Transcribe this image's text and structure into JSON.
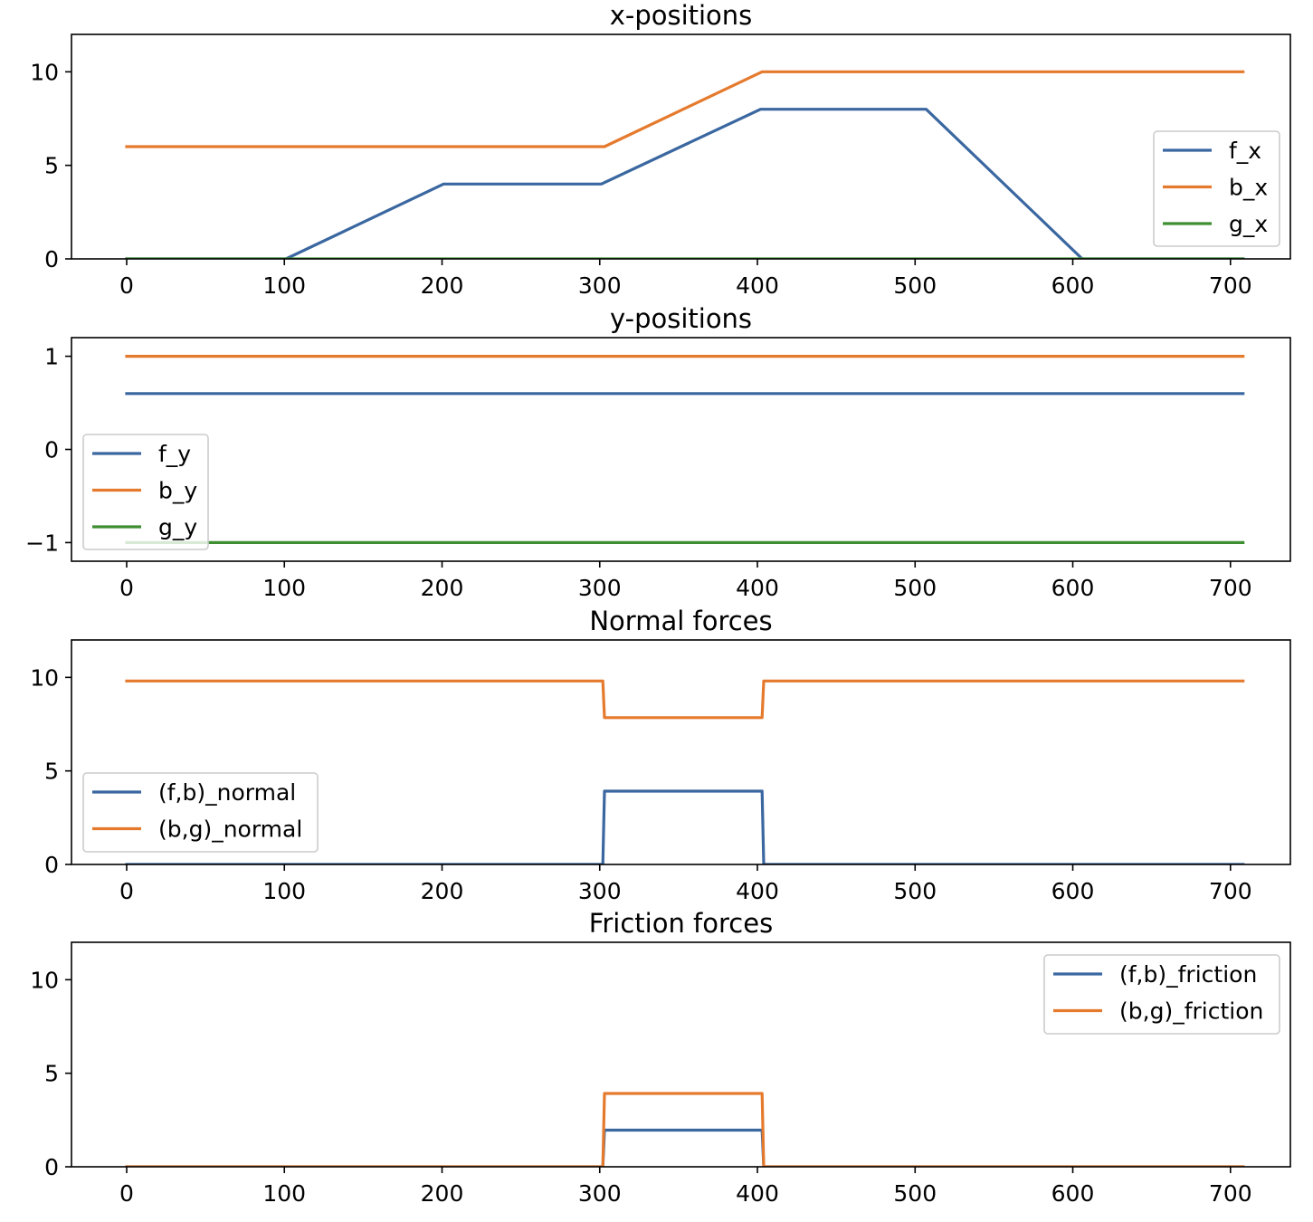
{
  "chart_data": [
    {
      "type": "line",
      "title": "x-positions",
      "xlabel": "",
      "ylabel": "",
      "xlim": [
        -35,
        738
      ],
      "ylim": [
        0,
        12
      ],
      "xticks": [
        0,
        100,
        200,
        300,
        400,
        500,
        600,
        700
      ],
      "yticks": [
        0,
        5,
        10
      ],
      "xtick_labels": [
        "0",
        "100",
        "200",
        "300",
        "400",
        "500",
        "600",
        "700"
      ],
      "ytick_labels": [
        "0",
        "5",
        "10"
      ],
      "legend_position": "center-right",
      "series": [
        {
          "name": "f_x",
          "color": "#3a67a0",
          "x": [
            0,
            101,
            201,
            301,
            402,
            507,
            606,
            708
          ],
          "y": [
            0,
            0,
            4,
            4,
            8,
            8,
            0,
            0
          ]
        },
        {
          "name": "b_x",
          "color": "#e57a2d",
          "x": [
            0,
            303,
            403,
            708
          ],
          "y": [
            6,
            6,
            10,
            10
          ]
        },
        {
          "name": "g_x",
          "color": "#3f8f32",
          "x": [
            0,
            708
          ],
          "y": [
            0,
            0
          ]
        }
      ]
    },
    {
      "type": "line",
      "title": "y-positions",
      "xlabel": "",
      "ylabel": "",
      "xlim": [
        -35,
        738
      ],
      "ylim": [
        -1.2,
        1.2
      ],
      "xticks": [
        0,
        100,
        200,
        300,
        400,
        500,
        600,
        700
      ],
      "yticks": [
        -1,
        0,
        1
      ],
      "xtick_labels": [
        "0",
        "100",
        "200",
        "300",
        "400",
        "500",
        "600",
        "700"
      ],
      "ytick_labels": [
        "−1",
        "0",
        "1"
      ],
      "legend_position": "lower-left",
      "series": [
        {
          "name": "f_y",
          "color": "#3a67a0",
          "x": [
            0,
            708
          ],
          "y": [
            0.6,
            0.6
          ]
        },
        {
          "name": "b_y",
          "color": "#e57a2d",
          "x": [
            0,
            708
          ],
          "y": [
            1,
            1
          ]
        },
        {
          "name": "g_y",
          "color": "#3f8f32",
          "x": [
            0,
            708
          ],
          "y": [
            -1,
            -1
          ]
        }
      ]
    },
    {
      "type": "line",
      "title": "Normal forces",
      "xlabel": "",
      "ylabel": "",
      "xlim": [
        -35,
        738
      ],
      "ylim": [
        0,
        12
      ],
      "xticks": [
        0,
        100,
        200,
        300,
        400,
        500,
        600,
        700
      ],
      "yticks": [
        0,
        5,
        10
      ],
      "xtick_labels": [
        "0",
        "100",
        "200",
        "300",
        "400",
        "500",
        "600",
        "700"
      ],
      "ytick_labels": [
        "0",
        "5",
        "10"
      ],
      "legend_position": "center-left",
      "series": [
        {
          "name": "(f,b)_normal",
          "color": "#3a67a0",
          "x": [
            0,
            302,
            303,
            403,
            404,
            708
          ],
          "y": [
            0,
            0,
            3.92,
            3.92,
            0,
            0
          ]
        },
        {
          "name": "(b,g)_normal",
          "color": "#e57a2d",
          "x": [
            0,
            302,
            303,
            403,
            404,
            708
          ],
          "y": [
            9.81,
            9.81,
            7.85,
            7.85,
            9.81,
            9.81
          ]
        }
      ]
    },
    {
      "type": "line",
      "title": "Friction forces",
      "xlabel": "",
      "ylabel": "",
      "xlim": [
        -35,
        738
      ],
      "ylim": [
        0,
        12
      ],
      "xticks": [
        0,
        100,
        200,
        300,
        400,
        500,
        600,
        700
      ],
      "yticks": [
        0,
        5,
        10
      ],
      "xtick_labels": [
        "0",
        "100",
        "200",
        "300",
        "400",
        "500",
        "600",
        "700"
      ],
      "ytick_labels": [
        "0",
        "5",
        "10"
      ],
      "legend_position": "upper-right",
      "series": [
        {
          "name": "(f,b)_friction",
          "color": "#3a67a0",
          "x": [
            0,
            302,
            303,
            403,
            404,
            708
          ],
          "y": [
            0,
            0,
            1.96,
            1.96,
            0,
            0
          ]
        },
        {
          "name": "(b,g)_friction",
          "color": "#e57a2d",
          "x": [
            0,
            302,
            303,
            403,
            404,
            708
          ],
          "y": [
            0,
            0,
            3.92,
            3.92,
            0,
            0
          ]
        }
      ]
    }
  ]
}
